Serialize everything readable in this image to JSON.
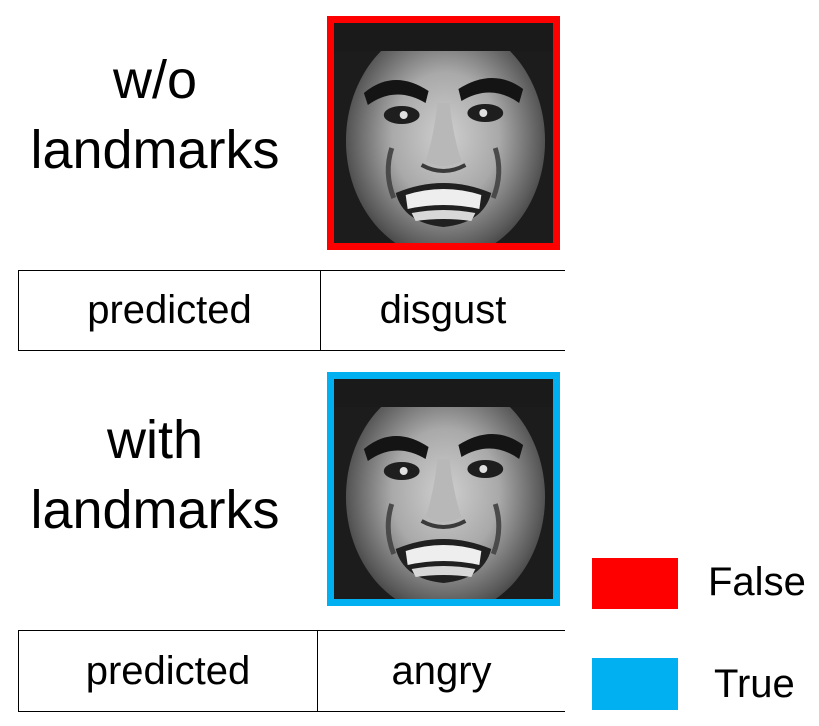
{
  "rows": [
    {
      "label_line1": "w/o",
      "label_line2": "landmarks",
      "frame_color": "#ff0000",
      "predicted_key": "predicted",
      "predicted_value": "disgust",
      "correct": false
    },
    {
      "label_line1": "with",
      "label_line2": "landmarks",
      "frame_color": "#00b0f0",
      "predicted_key": "predicted",
      "predicted_value": "angry",
      "correct": true
    }
  ],
  "legend": {
    "false_label": "False",
    "false_color": "#ff0000",
    "true_label": "True",
    "true_color": "#00b0f0"
  },
  "face_image": {
    "description_icon": "face-photo-icon"
  }
}
